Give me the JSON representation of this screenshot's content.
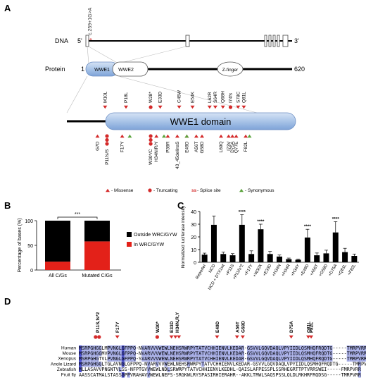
{
  "panels": {
    "a": "A",
    "b": "B",
    "c": "C",
    "d": "D"
  },
  "panel_a": {
    "splice_mutation": "c.259+1G>A",
    "splice_tag": "ss",
    "dna_label": "DNA",
    "dna_five": "5'",
    "dna_three": "3'",
    "protein_label": "Protein",
    "protein_start": "1",
    "protein_end": "620",
    "domains": [
      "WWE1",
      "WWE2",
      "Z-finger"
    ],
    "wwe1_domain_label": "WWE1 domain",
    "above_mutations": [
      {
        "label": "M10L",
        "pos": 0.09,
        "type": "missense"
      },
      {
        "label": "P18L",
        "pos": 0.2,
        "type": "missense"
      },
      {
        "label": "W28*",
        "pos": 0.33,
        "type": "truncating"
      },
      {
        "label": "E33D",
        "pos": 0.38,
        "type": "missense"
      },
      {
        "label": "C45W",
        "pos": 0.48,
        "type": "missense"
      },
      {
        "label": "E54K",
        "pos": 0.55,
        "type": "missense"
      },
      {
        "label": "L62R",
        "pos": 0.64,
        "type": "missense"
      },
      {
        "label": "S64R",
        "pos": 0.67,
        "type": "missense"
      },
      {
        "label": "Q68H",
        "pos": 0.71,
        "type": "missense"
      },
      {
        "label": "I74fs",
        "pos": 0.75,
        "type": "truncating"
      },
      {
        "label": "S78C",
        "pos": 0.79,
        "type": "missense"
      },
      {
        "label": "Q81L",
        "pos": 0.82,
        "type": "missense"
      }
    ],
    "below_mutations": [
      {
        "label": "G7D",
        "pos": 0.05,
        "type": "missense"
      },
      {
        "label": "P11fs/S",
        "pos": 0.1,
        "type": "truncating"
      },
      {
        "label": "F17Y",
        "pos": 0.18,
        "type": "missense"
      },
      {
        "label": "W30*/C",
        "pos": 0.33,
        "type": "truncating"
      },
      {
        "label": "H34N/R/Y",
        "pos": 0.36,
        "type": "missense"
      },
      {
        "label": "P39R",
        "pos": 0.42,
        "type": "missense"
      },
      {
        "label": "43_45delinsS",
        "pos": 0.47,
        "type": "missense"
      },
      {
        "label": "E49D",
        "pos": 0.52,
        "type": "missense"
      },
      {
        "label": "A56T",
        "pos": 0.57,
        "type": "missense"
      },
      {
        "label": "G58D",
        "pos": 0.6,
        "type": "missense"
      },
      {
        "label": "L69Q",
        "pos": 0.7,
        "type": "missense"
      },
      {
        "label": "I73V",
        "pos": 0.74,
        "type": "missense"
      },
      {
        "label": "D75A",
        "pos": 0.76,
        "type": "missense"
      },
      {
        "label": "Q77E",
        "pos": 0.78,
        "type": "missense"
      },
      {
        "label": "F82L",
        "pos": 0.83,
        "type": "missense"
      }
    ],
    "legend": [
      {
        "label": "- Missense",
        "type": "missense"
      },
      {
        "label": "- Truncating",
        "type": "truncating"
      },
      {
        "label": "- Splice site",
        "type": "splice"
      },
      {
        "label": "- Synonymous",
        "type": "synonymous"
      }
    ]
  },
  "chart_data": [
    {
      "type": "bar",
      "stacked": true,
      "ylabel": "Percentage of bases (%)",
      "categories": [
        "All C/Gs",
        "Mutated C/Gs"
      ],
      "series": [
        {
          "name": "Outside WRC/GYW",
          "values": [
            83,
            42
          ]
        },
        {
          "name": "In WRC/GYW",
          "values": [
            17,
            58
          ]
        }
      ],
      "ylim": [
        0,
        100
      ],
      "yticks": [
        0,
        50,
        100
      ],
      "significance": "***",
      "legend_position": "right"
    },
    {
      "type": "bar",
      "ylabel": "Normalized luciferase intensity",
      "categories": [
        "Reporter",
        "NCD",
        "NCD + DTX1wt",
        "+P11S",
        "+P11fs*2",
        "+F17Y",
        "+W30X",
        "+E33D",
        "+H34N",
        "+H34R",
        "+H34Y",
        "+E49D",
        "+A56T",
        "+G58D",
        "+D75A",
        "+Q81L",
        "+F82L"
      ],
      "values": [
        6,
        29.5,
        6.5,
        5.5,
        29.5,
        6.5,
        26,
        6.5,
        4.5,
        2.5,
        2,
        19.5,
        5.5,
        7,
        23.5,
        8,
        5
      ],
      "errors": [
        1.2,
        7,
        1.5,
        1.3,
        8,
        2.5,
        4,
        2,
        1.2,
        0.8,
        0.5,
        6.5,
        1.8,
        2.5,
        8.5,
        3,
        1.5
      ],
      "significance": [
        "",
        "",
        "",
        "",
        "****",
        "",
        "****",
        "",
        "",
        "",
        "",
        "****",
        "",
        "",
        "****",
        "",
        ""
      ],
      "ylim": [
        0,
        40
      ],
      "yticks": [
        0,
        10,
        20,
        30,
        40
      ]
    }
  ],
  "panel_d": {
    "species": [
      "Human",
      "Mouse",
      "Xenopus",
      "Anole Lizard",
      "Zebrafish",
      "Fruit fly"
    ],
    "sequences": [
      "MSRPGHGGLMPVNGLGFPPQ-NVARVVVWEWLNEHSRWRPYTATVCHHIENVLKEDAR-GSVVLGQVDAQLVPYIIDLQSMHQFRQDTG-----TMRPVRR",
      "MSRPGHGGMVPVNGLGFPPQ-NVARVVVWEWLNEHSRWRPYTATVCHHIENVLKEDAR-GSVVLGQVDAQLVPYIIDLQSMHQFRQDTG-----TMRPVRR",
      "MSRPGHGTVLPVNGLGFPPQ-SVARVVVWEWLNEHSRWRPYTATVCHHIENVLKEDAR-GSVVLGQVDAQLVPYIIDLQSMHQFRQDTG-----TMRPVRR",
      "MSRPGHGGLTGLAVNGLGFPPQ-NVARVVVWEWLNEHSRWRPYTATVCHHIENVLKEDAR-GSVVLGQVDAQLVPYIIDLQSMHQFRQDTG-----TMRPVRR",
      "MLLASAVVPNGNTVLSS-NFPTGVVWEWLNDLSRWRPYTATVCHHIENVLKEDHL-QAISLAFPESSPLSSRHEGRTTPTVRRSWEI-----FMRPVRR",
      "AASSCATMALSTASSGPPVRAHAVVWEWLNEFS-SRGKWLRYSPASIRHIERAHR--AKKLTRWLSAQSPSSLQLDLRKHRFRQDSG-----TMRPVRR"
    ],
    "mutations": [
      {
        "label": "P11S,fs*2",
        "type": "truncating"
      },
      {
        "label": "F17Y",
        "type": "missense"
      },
      {
        "label": "W30*",
        "type": "truncating"
      },
      {
        "label": "E33D",
        "type": "missense"
      },
      {
        "label": "H34N,R,Y",
        "type": "missense"
      },
      {
        "label": "E49D",
        "type": "missense"
      },
      {
        "label": "A56T",
        "type": "missense"
      },
      {
        "label": "G58D",
        "type": "missense"
      },
      {
        "label": "D75A",
        "type": "missense"
      },
      {
        "label": "Q81L",
        "type": "missense"
      },
      {
        "label": "F82L",
        "type": "missense"
      }
    ]
  },
  "colors": {
    "missense": "#d42a2a",
    "truncating": "#d42a2a",
    "splice": "#d42a2a",
    "synonymous": "#5aa33c",
    "domain_fill": "#a9c4e8",
    "domain_stroke": "#6d8fc4",
    "in_motif": "#e32119",
    "outside_motif": "#000000",
    "align_strong": "#4a4fd0",
    "align_light": "#a7aee8"
  }
}
